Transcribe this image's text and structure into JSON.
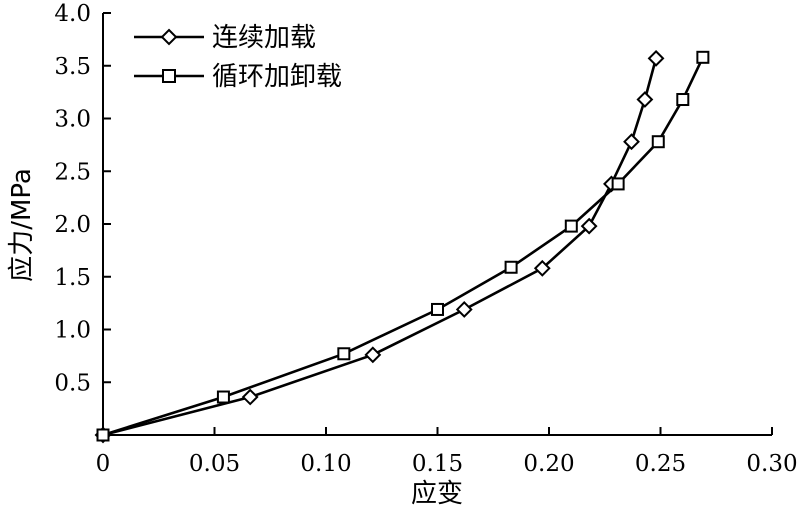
{
  "chart_data": {
    "type": "line",
    "xlabel": "应变",
    "ylabel": "应力/MPa",
    "xlim": [
      0,
      0.3
    ],
    "ylim": [
      0,
      4.0
    ],
    "x_ticks": [
      {
        "value": 0,
        "label": "0"
      },
      {
        "value": 0.05,
        "label": "0.05"
      },
      {
        "value": 0.1,
        "label": "0.10"
      },
      {
        "value": 0.15,
        "label": "0.15"
      },
      {
        "value": 0.2,
        "label": "0.20"
      },
      {
        "value": 0.25,
        "label": "0.25"
      },
      {
        "value": 0.3,
        "label": "0.30"
      }
    ],
    "y_ticks": [
      {
        "value": 0.5,
        "label": "0.5"
      },
      {
        "value": 1.0,
        "label": "1.0"
      },
      {
        "value": 1.5,
        "label": "1.5"
      },
      {
        "value": 2.0,
        "label": "2.0"
      },
      {
        "value": 2.5,
        "label": "2.5"
      },
      {
        "value": 3.0,
        "label": "3.0"
      },
      {
        "value": 3.5,
        "label": "3.5"
      },
      {
        "value": 4.0,
        "label": "4.0"
      }
    ],
    "grid": false,
    "legend_position": "top-left",
    "series": [
      {
        "name": "连续加载",
        "marker": "diamond",
        "x": [
          0.0,
          0.066,
          0.121,
          0.162,
          0.197,
          0.218,
          0.228,
          0.237,
          0.243,
          0.248
        ],
        "y": [
          0.0,
          0.36,
          0.76,
          1.19,
          1.58,
          1.98,
          2.38,
          2.78,
          3.18,
          3.57
        ]
      },
      {
        "name": "循环加卸载",
        "marker": "square",
        "x": [
          0.0,
          0.054,
          0.108,
          0.15,
          0.183,
          0.21,
          0.231,
          0.249,
          0.26,
          0.269
        ],
        "y": [
          0.0,
          0.36,
          0.77,
          1.19,
          1.59,
          1.98,
          2.38,
          2.78,
          3.18,
          3.58
        ]
      }
    ]
  }
}
